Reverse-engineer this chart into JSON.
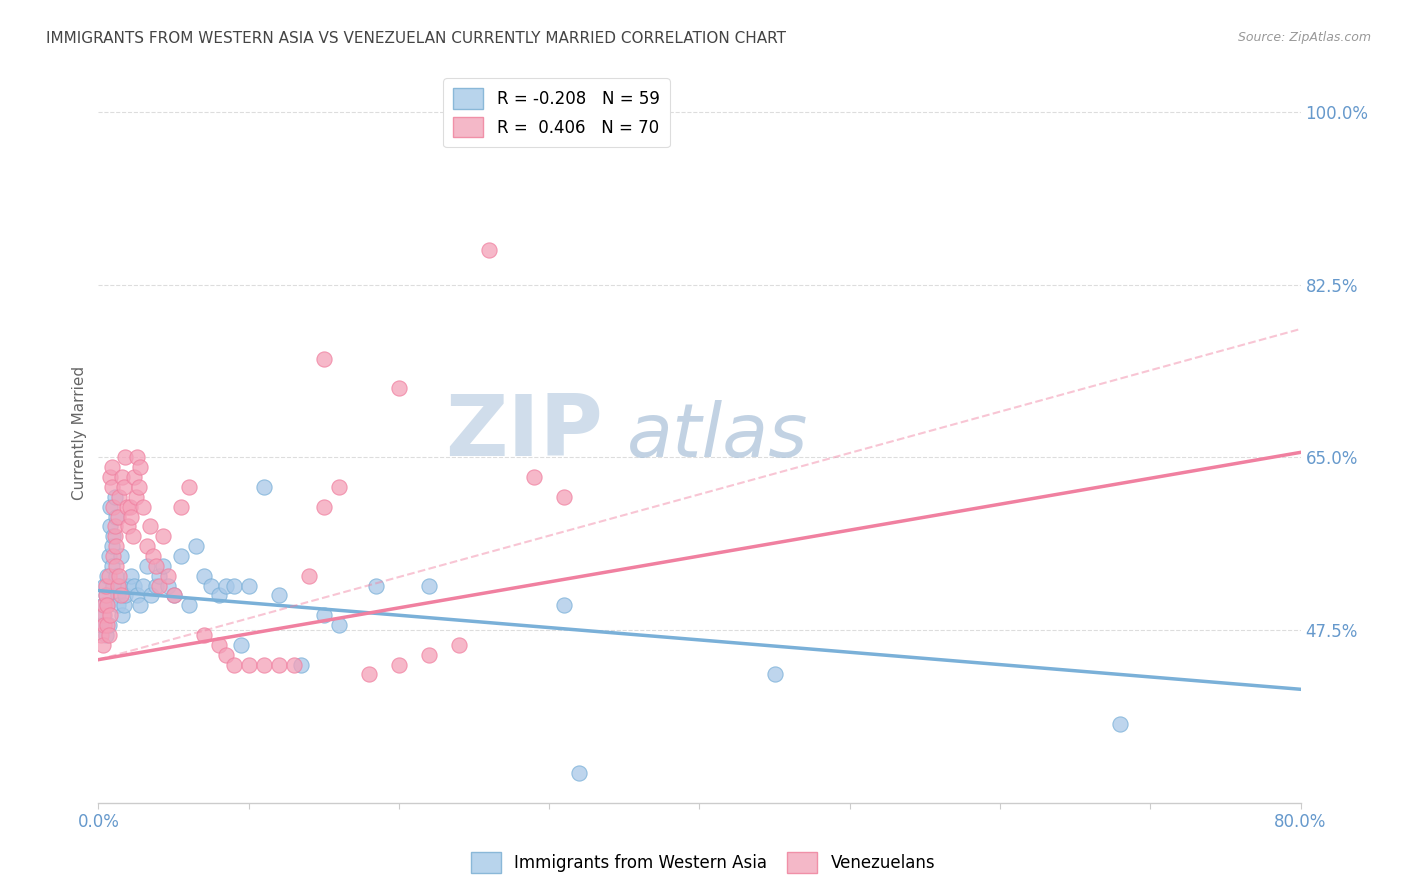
{
  "title": "IMMIGRANTS FROM WESTERN ASIA VS VENEZUELAN CURRENTLY MARRIED CORRELATION CHART",
  "source": "Source: ZipAtlas.com",
  "ylabel": "Currently Married",
  "ytick_labels": [
    "100.0%",
    "82.5%",
    "65.0%",
    "47.5%"
  ],
  "ytick_values": [
    1.0,
    0.825,
    0.65,
    0.475
  ],
  "xlim": [
    0.0,
    0.8
  ],
  "ylim": [
    0.3,
    1.05
  ],
  "blue_scatter": [
    [
      0.002,
      0.48
    ],
    [
      0.003,
      0.5
    ],
    [
      0.004,
      0.52
    ],
    [
      0.004,
      0.49
    ],
    [
      0.005,
      0.51
    ],
    [
      0.005,
      0.47
    ],
    [
      0.006,
      0.53
    ],
    [
      0.006,
      0.5
    ],
    [
      0.007,
      0.48
    ],
    [
      0.007,
      0.55
    ],
    [
      0.008,
      0.6
    ],
    [
      0.008,
      0.58
    ],
    [
      0.009,
      0.54
    ],
    [
      0.009,
      0.56
    ],
    [
      0.01,
      0.57
    ],
    [
      0.01,
      0.52
    ],
    [
      0.011,
      0.61
    ],
    [
      0.012,
      0.59
    ],
    [
      0.012,
      0.53
    ],
    [
      0.013,
      0.51
    ],
    [
      0.013,
      0.5
    ],
    [
      0.014,
      0.52
    ],
    [
      0.015,
      0.55
    ],
    [
      0.016,
      0.49
    ],
    [
      0.017,
      0.5
    ],
    [
      0.018,
      0.51
    ],
    [
      0.02,
      0.52
    ],
    [
      0.022,
      0.53
    ],
    [
      0.024,
      0.52
    ],
    [
      0.026,
      0.51
    ],
    [
      0.028,
      0.5
    ],
    [
      0.03,
      0.52
    ],
    [
      0.032,
      0.54
    ],
    [
      0.035,
      0.51
    ],
    [
      0.038,
      0.52
    ],
    [
      0.04,
      0.53
    ],
    [
      0.043,
      0.54
    ],
    [
      0.046,
      0.52
    ],
    [
      0.05,
      0.51
    ],
    [
      0.055,
      0.55
    ],
    [
      0.06,
      0.5
    ],
    [
      0.065,
      0.56
    ],
    [
      0.07,
      0.53
    ],
    [
      0.075,
      0.52
    ],
    [
      0.08,
      0.51
    ],
    [
      0.085,
      0.52
    ],
    [
      0.09,
      0.52
    ],
    [
      0.095,
      0.46
    ],
    [
      0.1,
      0.52
    ],
    [
      0.11,
      0.62
    ],
    [
      0.12,
      0.51
    ],
    [
      0.135,
      0.44
    ],
    [
      0.15,
      0.49
    ],
    [
      0.16,
      0.48
    ],
    [
      0.185,
      0.52
    ],
    [
      0.22,
      0.52
    ],
    [
      0.31,
      0.5
    ],
    [
      0.32,
      0.33
    ],
    [
      0.45,
      0.43
    ],
    [
      0.68,
      0.38
    ]
  ],
  "pink_scatter": [
    [
      0.002,
      0.47
    ],
    [
      0.003,
      0.49
    ],
    [
      0.003,
      0.46
    ],
    [
      0.004,
      0.48
    ],
    [
      0.004,
      0.5
    ],
    [
      0.005,
      0.51
    ],
    [
      0.005,
      0.52
    ],
    [
      0.006,
      0.48
    ],
    [
      0.006,
      0.5
    ],
    [
      0.007,
      0.53
    ],
    [
      0.007,
      0.47
    ],
    [
      0.008,
      0.49
    ],
    [
      0.008,
      0.63
    ],
    [
      0.009,
      0.64
    ],
    [
      0.009,
      0.62
    ],
    [
      0.01,
      0.6
    ],
    [
      0.01,
      0.55
    ],
    [
      0.011,
      0.57
    ],
    [
      0.011,
      0.58
    ],
    [
      0.012,
      0.56
    ],
    [
      0.012,
      0.54
    ],
    [
      0.013,
      0.52
    ],
    [
      0.013,
      0.59
    ],
    [
      0.014,
      0.61
    ],
    [
      0.014,
      0.53
    ],
    [
      0.015,
      0.51
    ],
    [
      0.016,
      0.63
    ],
    [
      0.017,
      0.62
    ],
    [
      0.018,
      0.65
    ],
    [
      0.019,
      0.6
    ],
    [
      0.02,
      0.58
    ],
    [
      0.021,
      0.6
    ],
    [
      0.022,
      0.59
    ],
    [
      0.023,
      0.57
    ],
    [
      0.024,
      0.63
    ],
    [
      0.025,
      0.61
    ],
    [
      0.026,
      0.65
    ],
    [
      0.027,
      0.62
    ],
    [
      0.028,
      0.64
    ],
    [
      0.03,
      0.6
    ],
    [
      0.032,
      0.56
    ],
    [
      0.034,
      0.58
    ],
    [
      0.036,
      0.55
    ],
    [
      0.038,
      0.54
    ],
    [
      0.04,
      0.52
    ],
    [
      0.043,
      0.57
    ],
    [
      0.046,
      0.53
    ],
    [
      0.05,
      0.51
    ],
    [
      0.055,
      0.6
    ],
    [
      0.06,
      0.62
    ],
    [
      0.07,
      0.47
    ],
    [
      0.08,
      0.46
    ],
    [
      0.085,
      0.45
    ],
    [
      0.09,
      0.44
    ],
    [
      0.1,
      0.44
    ],
    [
      0.11,
      0.44
    ],
    [
      0.12,
      0.44
    ],
    [
      0.13,
      0.44
    ],
    [
      0.14,
      0.53
    ],
    [
      0.15,
      0.6
    ],
    [
      0.16,
      0.62
    ],
    [
      0.18,
      0.43
    ],
    [
      0.2,
      0.44
    ],
    [
      0.22,
      0.45
    ],
    [
      0.24,
      0.46
    ],
    [
      0.15,
      0.75
    ],
    [
      0.26,
      0.86
    ],
    [
      0.2,
      0.72
    ],
    [
      0.29,
      0.63
    ],
    [
      0.31,
      0.61
    ]
  ],
  "blue_line": {
    "x": [
      0.0,
      0.8
    ],
    "y": [
      0.515,
      0.415
    ]
  },
  "pink_line": {
    "x": [
      0.0,
      0.8
    ],
    "y": [
      0.445,
      0.655
    ]
  },
  "pink_dashed": {
    "x": [
      0.0,
      0.8
    ],
    "y": [
      0.445,
      0.78
    ]
  },
  "blue_color": "#7ab0d8",
  "pink_color": "#f080a0",
  "blue_scatter_color": "#a8c8e8",
  "pink_scatter_color": "#f4a0b8",
  "background_color": "#ffffff",
  "grid_color": "#dddddd",
  "title_color": "#444444",
  "axis_label_color": "#6699cc",
  "source_color": "#999999",
  "watermark_zip_color": "#c8d8e8",
  "watermark_atlas_color": "#a8c0d8"
}
